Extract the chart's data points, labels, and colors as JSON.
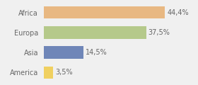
{
  "categories": [
    "Africa",
    "Europa",
    "Asia",
    "America"
  ],
  "values": [
    44.4,
    37.5,
    14.5,
    3.5
  ],
  "labels": [
    "44,4%",
    "37,5%",
    "14,5%",
    "3,5%"
  ],
  "bar_colors": [
    "#e8b882",
    "#b5c98a",
    "#6f86b8",
    "#f0d060"
  ],
  "background_color": "#f0f0f0",
  "xlim": [
    0,
    55
  ],
  "label_fontsize": 7.0,
  "category_fontsize": 7.0,
  "bar_height": 0.62
}
